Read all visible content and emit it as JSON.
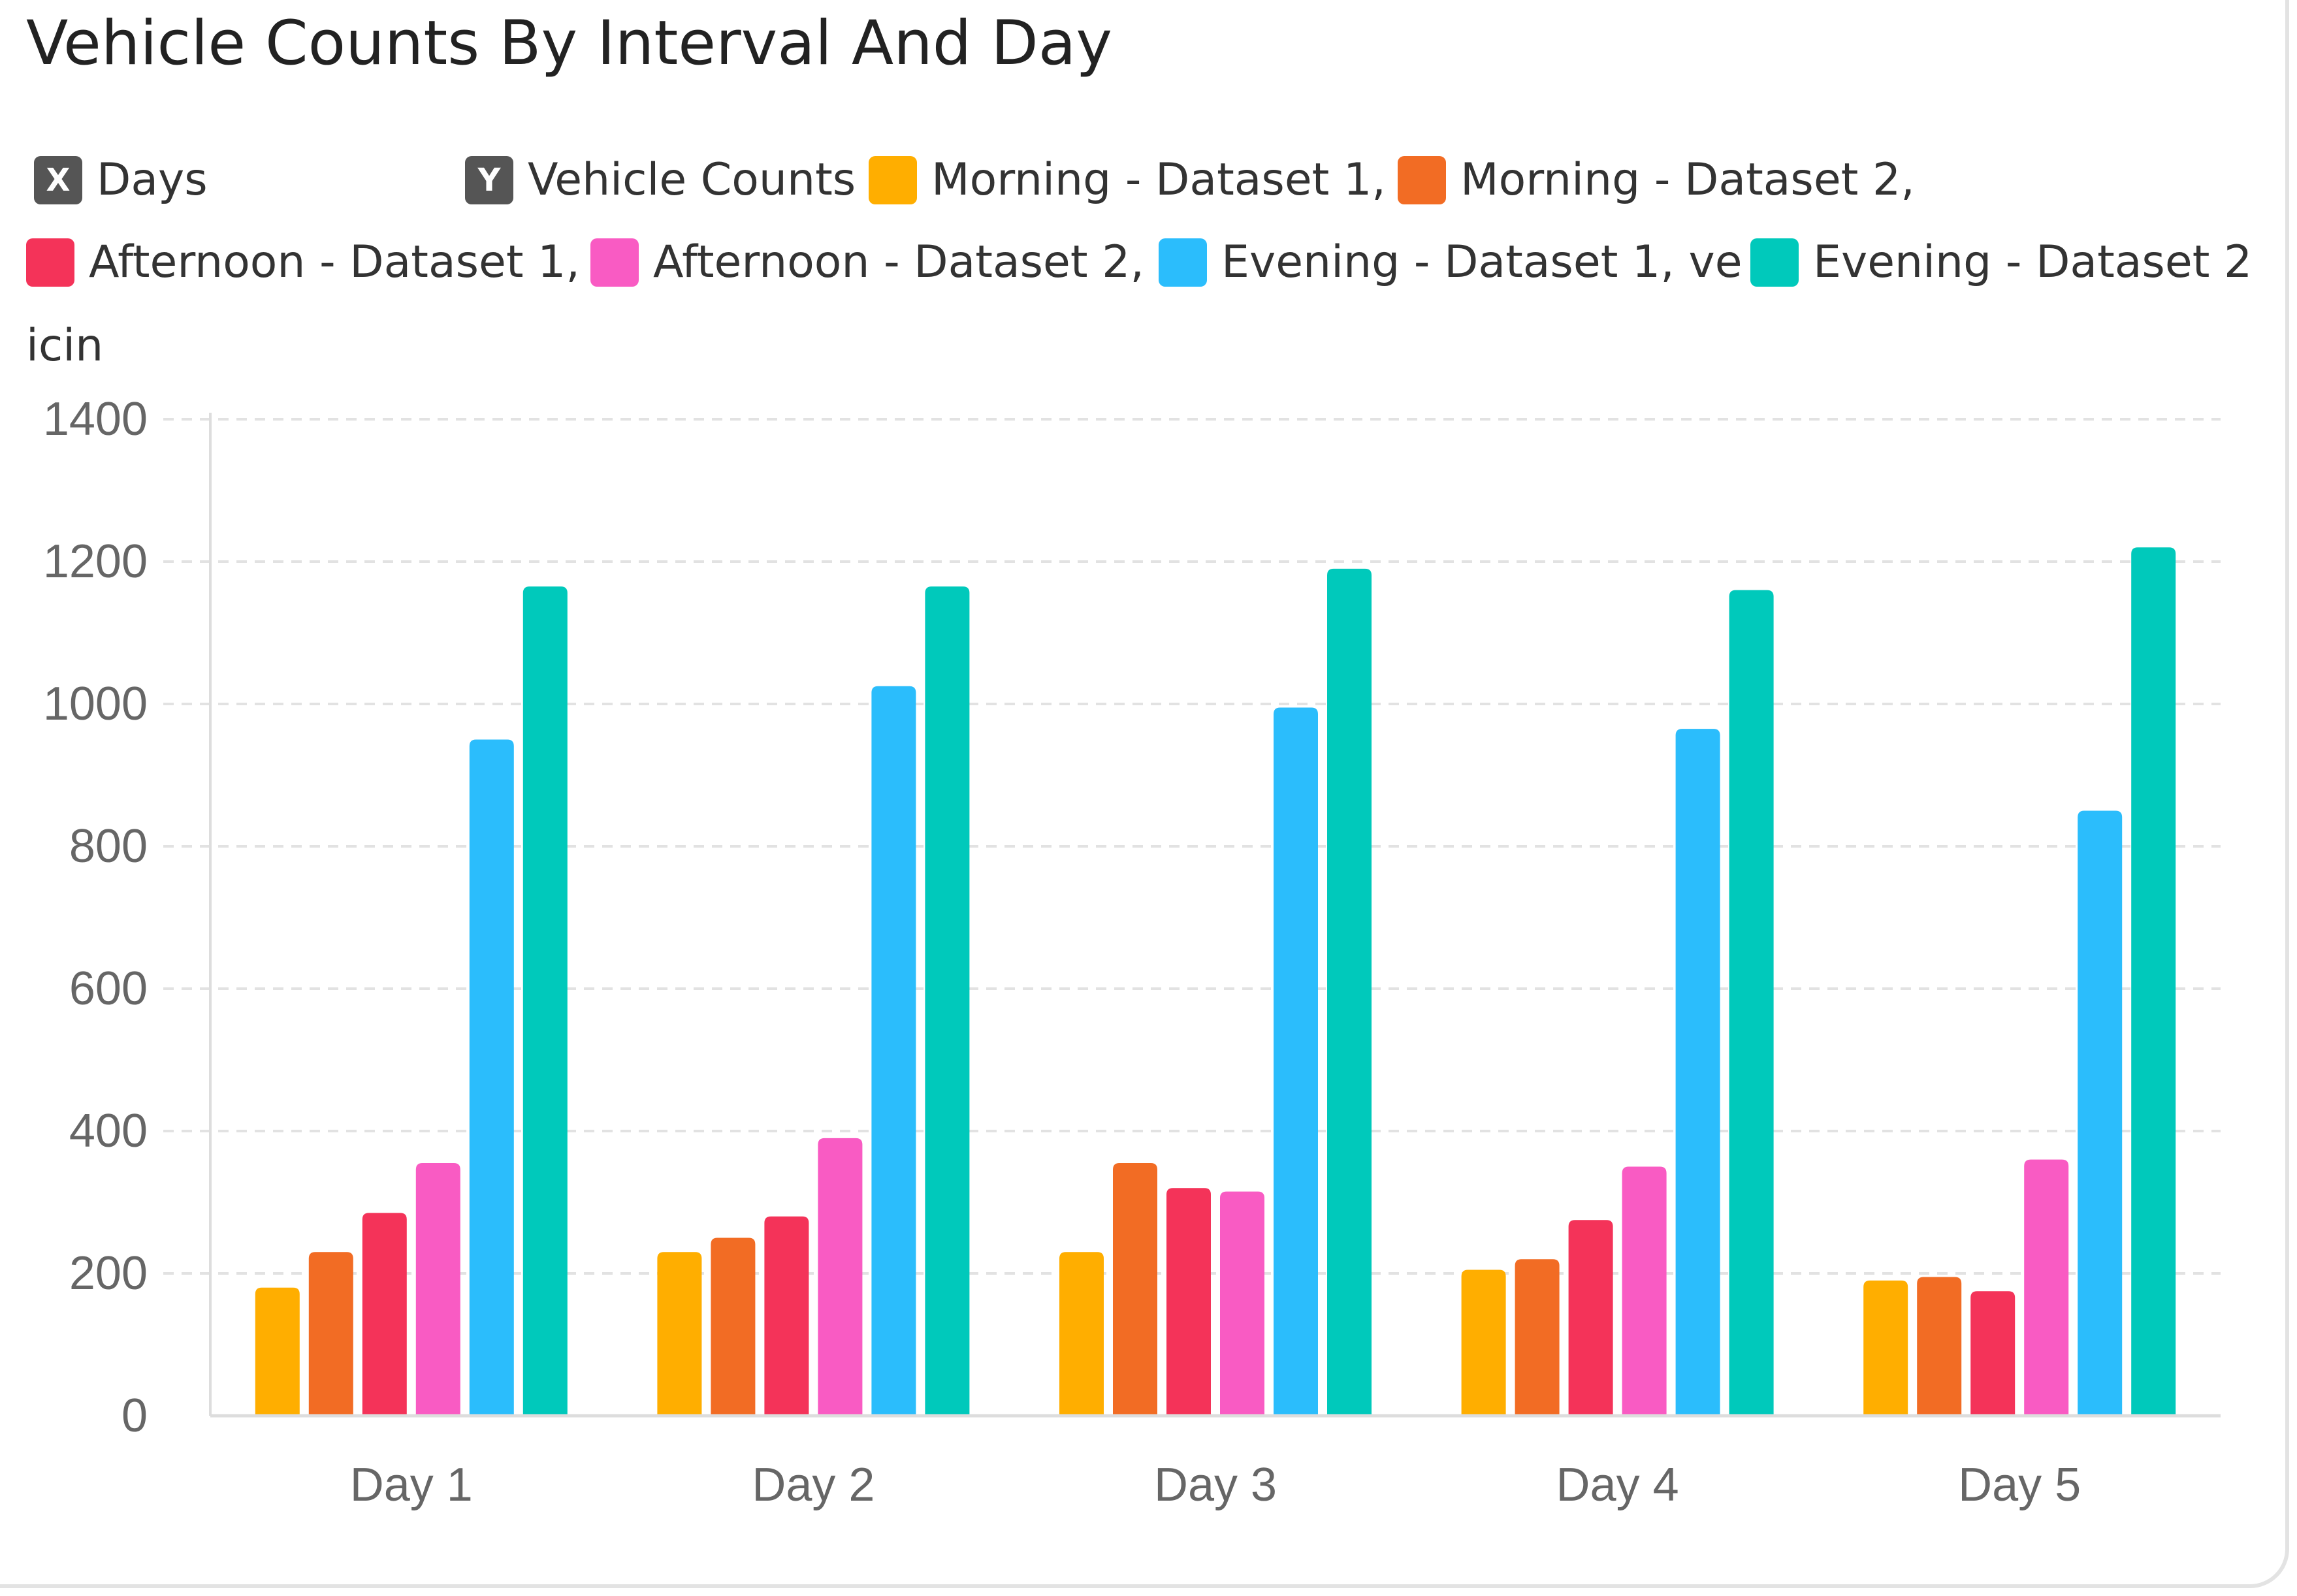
{
  "title": "Vehicle Counts By Interval And Day",
  "legend": {
    "x_axis_key": "X",
    "x_axis_label": "Days",
    "y_axis_key": "Y",
    "y_axis_label": "Vehicle Counts",
    "series_labels": [
      "Morning - Dataset 1,",
      "Morning - Dataset 2,",
      "Afternoon - Dataset 1,",
      "Afternoon - Dataset 2,",
      "Evening - Dataset 1, ve",
      "Evening - Dataset 2"
    ],
    "overflow_text": "icin"
  },
  "colors": {
    "morning_1": "#ffae00",
    "morning_2": "#f26c24",
    "afternoon_1": "#f43359",
    "afternoon_2": "#f95bc3",
    "evening_1": "#2bbdfc",
    "evening_2": "#00c9bb",
    "grid": "#e2e2e2",
    "axis": "#dddddd",
    "tick_text": "#666666"
  },
  "chart_data": {
    "type": "bar",
    "title": "Vehicle Counts By Interval And Day",
    "xlabel": "Days",
    "ylabel": "Vehicle Counts",
    "categories": [
      "Day 1",
      "Day 2",
      "Day 3",
      "Day 4",
      "Day 5"
    ],
    "ylim": [
      0,
      1400
    ],
    "yticks": [
      0,
      200,
      400,
      600,
      800,
      1000,
      1200,
      1400
    ],
    "grid": true,
    "legend_position": "top",
    "series": [
      {
        "name": "Morning - Dataset 1",
        "color_key": "morning_1",
        "values": [
          180,
          230,
          230,
          205,
          190
        ]
      },
      {
        "name": "Morning - Dataset 2",
        "color_key": "morning_2",
        "values": [
          230,
          250,
          355,
          220,
          195
        ]
      },
      {
        "name": "Afternoon - Dataset 1",
        "color_key": "afternoon_1",
        "values": [
          285,
          280,
          320,
          275,
          175
        ]
      },
      {
        "name": "Afternoon - Dataset 2",
        "color_key": "afternoon_2",
        "values": [
          355,
          390,
          315,
          350,
          360
        ]
      },
      {
        "name": "Evening - Dataset 1",
        "color_key": "evening_1",
        "values": [
          950,
          1025,
          995,
          965,
          850
        ]
      },
      {
        "name": "Evening - Dataset 2",
        "color_key": "evening_2",
        "values": [
          1165,
          1165,
          1190,
          1160,
          1220
        ]
      }
    ]
  }
}
